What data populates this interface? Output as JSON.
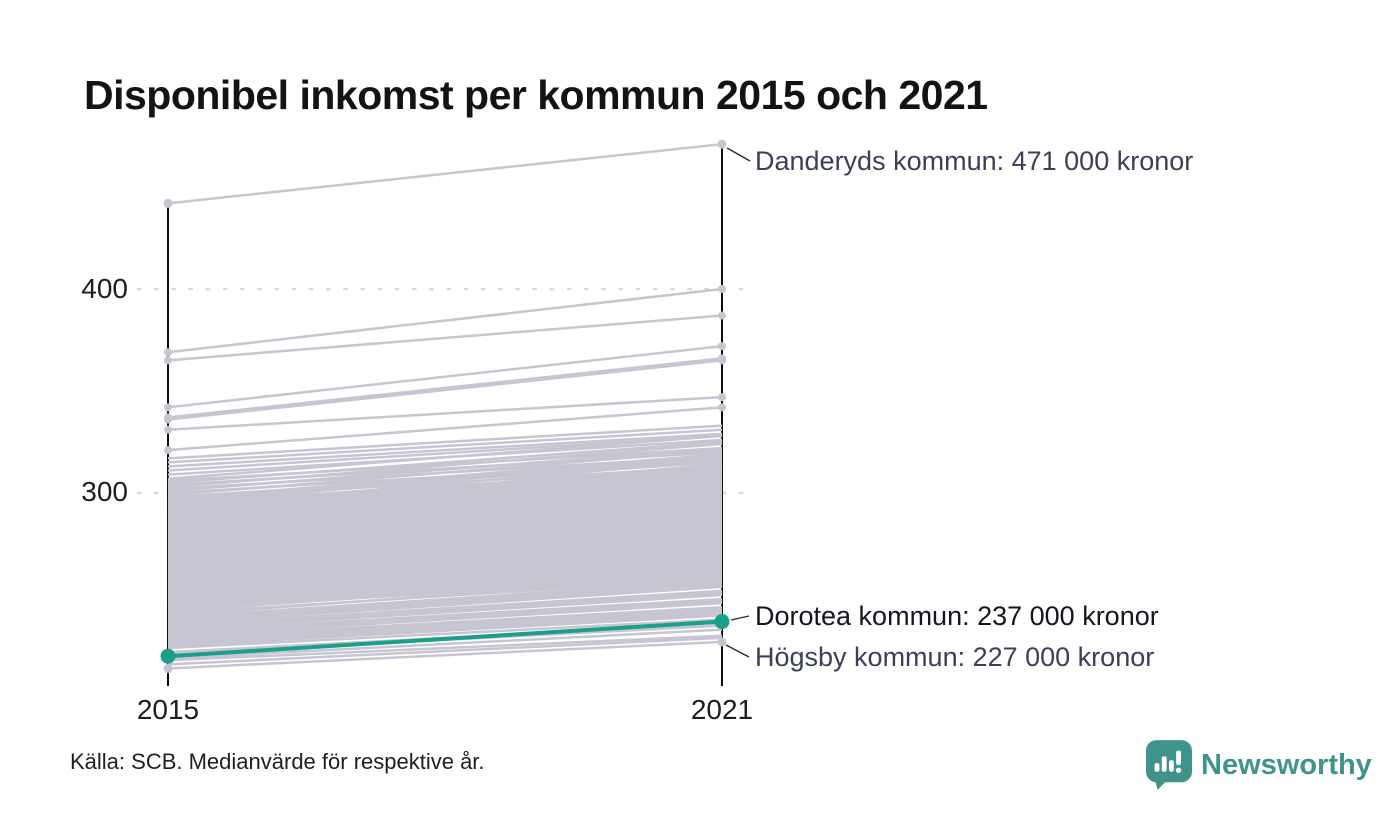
{
  "title": "Disponibel inkomst per kommun 2015 och 2021",
  "source_note": "Källa: SCB. Medianvärde för respektive år.",
  "logo": {
    "name": "Newsworthy",
    "icon": "newsworthy-speech-bubble-bar-chart-icon"
  },
  "colors": {
    "background": "#ffffff",
    "line_gray": "#c7c5d1",
    "accent_teal": "#1b9e8a",
    "axis_black": "#0c0c0c",
    "grid_dots": "#d9d9da",
    "text_slate": "#3b4054",
    "text_dark": "#15151e",
    "leader_line": "#2a2a2a",
    "logo_teal": "#3e948b"
  },
  "chart_data": {
    "type": "line",
    "subtype": "slope-chart",
    "x_categories": [
      "2015",
      "2021"
    ],
    "y_axis": {
      "ticks": [
        {
          "value": 400,
          "label": "400"
        },
        {
          "value": 300,
          "label": "300"
        }
      ],
      "values_in": "thousands of kronor"
    },
    "labeled": [
      {
        "name": "Danderyds kommun",
        "label": "Danderyds kommun: 471 000 kronor",
        "v2015": 442,
        "v2021": 471,
        "highlight": false
      },
      {
        "name": "Dorotea kommun",
        "label": "Dorotea kommun: 237 000 kronor",
        "v2015": 220,
        "v2021": 237,
        "highlight": true
      },
      {
        "name": "Högsby kommun",
        "label": "Högsby kommun: 227 000 kronor",
        "v2015": 214,
        "v2021": 227,
        "highlight": false
      }
    ],
    "background": [
      [
        369,
        400
      ],
      [
        365,
        387
      ],
      [
        342,
        372
      ],
      [
        337,
        366
      ],
      [
        336,
        365
      ],
      [
        331,
        347
      ],
      [
        321,
        342
      ],
      [
        317,
        333
      ],
      [
        315,
        331
      ],
      [
        313,
        329
      ],
      [
        311,
        328
      ],
      [
        309,
        326
      ],
      [
        307,
        328
      ],
      [
        306,
        322
      ],
      [
        305,
        325
      ],
      [
        304,
        320
      ],
      [
        303,
        324
      ],
      [
        302,
        318
      ],
      [
        301,
        322
      ],
      [
        300,
        316
      ],
      [
        299,
        321
      ],
      [
        298,
        315
      ],
      [
        297,
        319
      ],
      [
        297,
        313
      ],
      [
        296,
        318
      ],
      [
        295,
        312
      ],
      [
        295,
        317
      ],
      [
        294,
        311
      ],
      [
        293,
        316
      ],
      [
        293,
        309
      ],
      [
        292,
        314
      ],
      [
        291,
        308
      ],
      [
        291,
        313
      ],
      [
        290,
        306
      ],
      [
        290,
        312
      ],
      [
        289,
        305
      ],
      [
        289,
        311
      ],
      [
        288,
        304
      ],
      [
        288,
        310
      ],
      [
        287,
        303
      ],
      [
        287,
        309
      ],
      [
        286,
        302
      ],
      [
        286,
        308
      ],
      [
        285,
        301
      ],
      [
        285,
        307
      ],
      [
        284,
        300
      ],
      [
        284,
        306
      ],
      [
        283,
        299
      ],
      [
        283,
        305
      ],
      [
        282,
        298
      ],
      [
        282,
        304
      ],
      [
        281,
        297
      ],
      [
        281,
        303
      ],
      [
        280,
        296
      ],
      [
        280,
        302
      ],
      [
        279,
        295
      ],
      [
        279,
        301
      ],
      [
        278,
        294
      ],
      [
        278,
        300
      ],
      [
        277,
        293
      ],
      [
        277,
        299
      ],
      [
        276,
        292
      ],
      [
        276,
        298
      ],
      [
        275,
        291
      ],
      [
        275,
        297
      ],
      [
        274,
        290
      ],
      [
        274,
        296
      ],
      [
        273,
        289
      ],
      [
        273,
        295
      ],
      [
        272,
        288
      ],
      [
        272,
        294
      ],
      [
        271,
        287
      ],
      [
        271,
        293
      ],
      [
        270,
        286
      ],
      [
        270,
        292
      ],
      [
        269,
        285
      ],
      [
        269,
        291
      ],
      [
        268,
        284
      ],
      [
        268,
        290
      ],
      [
        267,
        283
      ],
      [
        267,
        289
      ],
      [
        266,
        282
      ],
      [
        266,
        288
      ],
      [
        265,
        281
      ],
      [
        265,
        287
      ],
      [
        264,
        280
      ],
      [
        264,
        286
      ],
      [
        263,
        279
      ],
      [
        263,
        285
      ],
      [
        262,
        278
      ],
      [
        262,
        284
      ],
      [
        261,
        277
      ],
      [
        261,
        283
      ],
      [
        260,
        276
      ],
      [
        260,
        282
      ],
      [
        259,
        275
      ],
      [
        259,
        281
      ],
      [
        258,
        274
      ],
      [
        258,
        280
      ],
      [
        257,
        273
      ],
      [
        257,
        279
      ],
      [
        256,
        272
      ],
      [
        256,
        278
      ],
      [
        255,
        271
      ],
      [
        255,
        277
      ],
      [
        254,
        270
      ],
      [
        254,
        276
      ],
      [
        253,
        269
      ],
      [
        253,
        275
      ],
      [
        252,
        268
      ],
      [
        252,
        274
      ],
      [
        251,
        267
      ],
      [
        251,
        273
      ],
      [
        250,
        266
      ],
      [
        250,
        272
      ],
      [
        249,
        265
      ],
      [
        249,
        271
      ],
      [
        248,
        264
      ],
      [
        248,
        270
      ],
      [
        247,
        263
      ],
      [
        247,
        269
      ],
      [
        246,
        262
      ],
      [
        246,
        268
      ],
      [
        245,
        261
      ],
      [
        245,
        267
      ],
      [
        244,
        260
      ],
      [
        243,
        259
      ],
      [
        242,
        261
      ],
      [
        241,
        258
      ],
      [
        240,
        260
      ],
      [
        239,
        257
      ],
      [
        238,
        256
      ],
      [
        237,
        255
      ],
      [
        236,
        254
      ],
      [
        235,
        252
      ],
      [
        234,
        251
      ],
      [
        233,
        250
      ],
      [
        232,
        248
      ],
      [
        231,
        247
      ],
      [
        230,
        246
      ],
      [
        229,
        244
      ],
      [
        228,
        243
      ],
      [
        227,
        242
      ],
      [
        226,
        241
      ],
      [
        225,
        240
      ],
      [
        224,
        238
      ],
      [
        222,
        236
      ],
      [
        221,
        235
      ],
      [
        219,
        233
      ],
      [
        218,
        230
      ],
      [
        216,
        229
      ]
    ]
  }
}
